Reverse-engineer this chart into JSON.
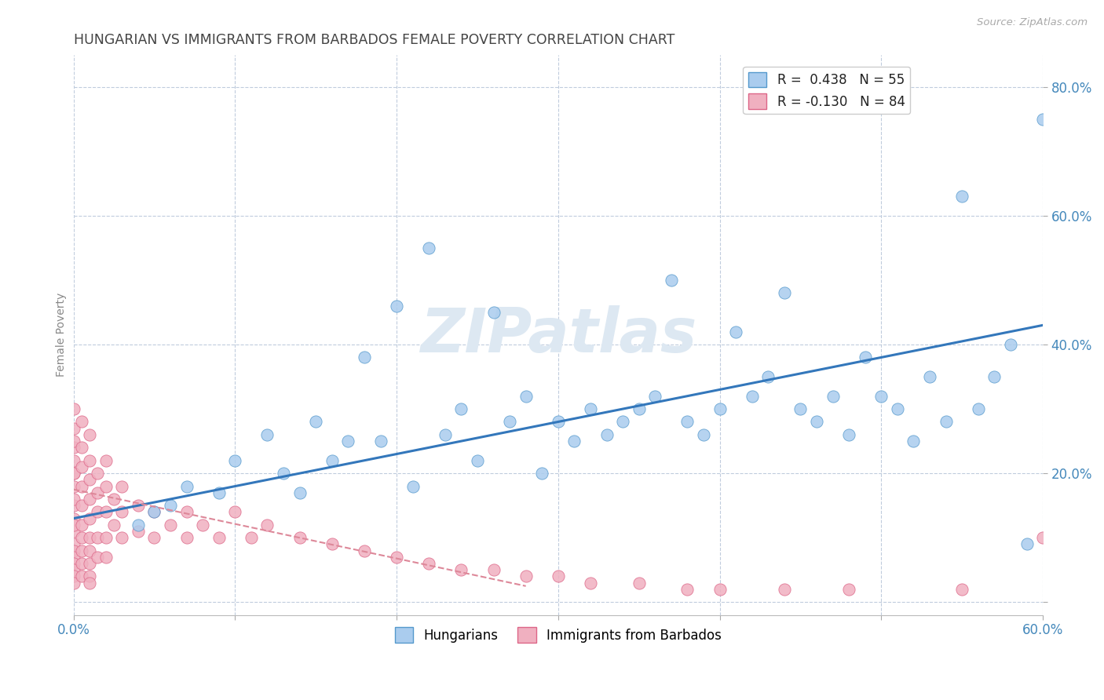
{
  "title": "HUNGARIAN VS IMMIGRANTS FROM BARBADOS FEMALE POVERTY CORRELATION CHART",
  "source": "Source: ZipAtlas.com",
  "ylabel": "Female Poverty",
  "xlim": [
    0.0,
    0.6
  ],
  "ylim": [
    -0.02,
    0.85
  ],
  "xtick_positions": [
    0.0,
    0.1,
    0.2,
    0.3,
    0.4,
    0.5,
    0.6
  ],
  "xtick_labels": [
    "0.0%",
    "",
    "",
    "",
    "",
    "",
    "60.0%"
  ],
  "ytick_positions": [
    0.0,
    0.2,
    0.4,
    0.6,
    0.8
  ],
  "ytick_labels": [
    "",
    "20.0%",
    "40.0%",
    "60.0%",
    "80.0%"
  ],
  "color_hungarian": "#aaccee",
  "color_hungarian_edge": "#5599cc",
  "color_barbados": "#f0b0c0",
  "color_barbados_edge": "#dd6688",
  "color_hungarian_line": "#3377bb",
  "color_barbados_line": "#dd8899",
  "watermark": "ZIPatlas",
  "R_hungarian": 0.438,
  "N_hungarian": 55,
  "R_barbados": -0.13,
  "N_barbados": 84,
  "hung_line_x0": 0.0,
  "hung_line_y0": 0.13,
  "hung_line_x1": 0.6,
  "hung_line_y1": 0.43,
  "barb_line_x0": 0.0,
  "barb_line_y0": 0.175,
  "barb_line_x1": 0.28,
  "barb_line_y1": 0.025,
  "hungarian_x": [
    0.06,
    0.09,
    0.13,
    0.14,
    0.16,
    0.17,
    0.19,
    0.21,
    0.23,
    0.24,
    0.25,
    0.27,
    0.28,
    0.29,
    0.3,
    0.31,
    0.32,
    0.33,
    0.34,
    0.35,
    0.36,
    0.38,
    0.39,
    0.4,
    0.42,
    0.43,
    0.45,
    0.46,
    0.47,
    0.48,
    0.5,
    0.51,
    0.52,
    0.53,
    0.54,
    0.56,
    0.57,
    0.58,
    0.04,
    0.05,
    0.07,
    0.1,
    0.12,
    0.15,
    0.18,
    0.2,
    0.22,
    0.26,
    0.37,
    0.41,
    0.44,
    0.49,
    0.55,
    0.59,
    0.6
  ],
  "hungarian_y": [
    0.15,
    0.17,
    0.2,
    0.17,
    0.22,
    0.25,
    0.25,
    0.18,
    0.26,
    0.3,
    0.22,
    0.28,
    0.32,
    0.2,
    0.28,
    0.25,
    0.3,
    0.26,
    0.28,
    0.3,
    0.32,
    0.28,
    0.26,
    0.3,
    0.32,
    0.35,
    0.3,
    0.28,
    0.32,
    0.26,
    0.32,
    0.3,
    0.25,
    0.35,
    0.28,
    0.3,
    0.35,
    0.4,
    0.12,
    0.14,
    0.18,
    0.22,
    0.26,
    0.28,
    0.38,
    0.46,
    0.55,
    0.45,
    0.5,
    0.42,
    0.48,
    0.38,
    0.63,
    0.09,
    0.75
  ],
  "barbados_x": [
    0.0,
    0.0,
    0.0,
    0.0,
    0.0,
    0.0,
    0.0,
    0.0,
    0.0,
    0.0,
    0.0,
    0.0,
    0.0,
    0.0,
    0.0,
    0.0,
    0.0,
    0.0,
    0.0,
    0.0,
    0.005,
    0.005,
    0.005,
    0.005,
    0.005,
    0.005,
    0.005,
    0.005,
    0.005,
    0.005,
    0.01,
    0.01,
    0.01,
    0.01,
    0.01,
    0.01,
    0.01,
    0.01,
    0.01,
    0.01,
    0.015,
    0.015,
    0.015,
    0.015,
    0.015,
    0.02,
    0.02,
    0.02,
    0.02,
    0.02,
    0.025,
    0.025,
    0.03,
    0.03,
    0.03,
    0.04,
    0.04,
    0.05,
    0.05,
    0.06,
    0.07,
    0.07,
    0.08,
    0.09,
    0.1,
    0.11,
    0.12,
    0.14,
    0.16,
    0.18,
    0.2,
    0.22,
    0.24,
    0.26,
    0.28,
    0.3,
    0.32,
    0.35,
    0.38,
    0.4,
    0.44,
    0.48,
    0.55,
    0.6
  ],
  "barbados_y": [
    0.3,
    0.27,
    0.24,
    0.22,
    0.2,
    0.18,
    0.15,
    0.13,
    0.11,
    0.09,
    0.08,
    0.07,
    0.06,
    0.05,
    0.04,
    0.03,
    0.12,
    0.16,
    0.2,
    0.25,
    0.28,
    0.24,
    0.21,
    0.18,
    0.15,
    0.12,
    0.1,
    0.08,
    0.06,
    0.04,
    0.26,
    0.22,
    0.19,
    0.16,
    0.13,
    0.1,
    0.08,
    0.06,
    0.04,
    0.03,
    0.2,
    0.17,
    0.14,
    0.1,
    0.07,
    0.22,
    0.18,
    0.14,
    0.1,
    0.07,
    0.16,
    0.12,
    0.18,
    0.14,
    0.1,
    0.15,
    0.11,
    0.14,
    0.1,
    0.12,
    0.1,
    0.14,
    0.12,
    0.1,
    0.14,
    0.1,
    0.12,
    0.1,
    0.09,
    0.08,
    0.07,
    0.06,
    0.05,
    0.05,
    0.04,
    0.04,
    0.03,
    0.03,
    0.02,
    0.02,
    0.02,
    0.02,
    0.02,
    0.1
  ]
}
